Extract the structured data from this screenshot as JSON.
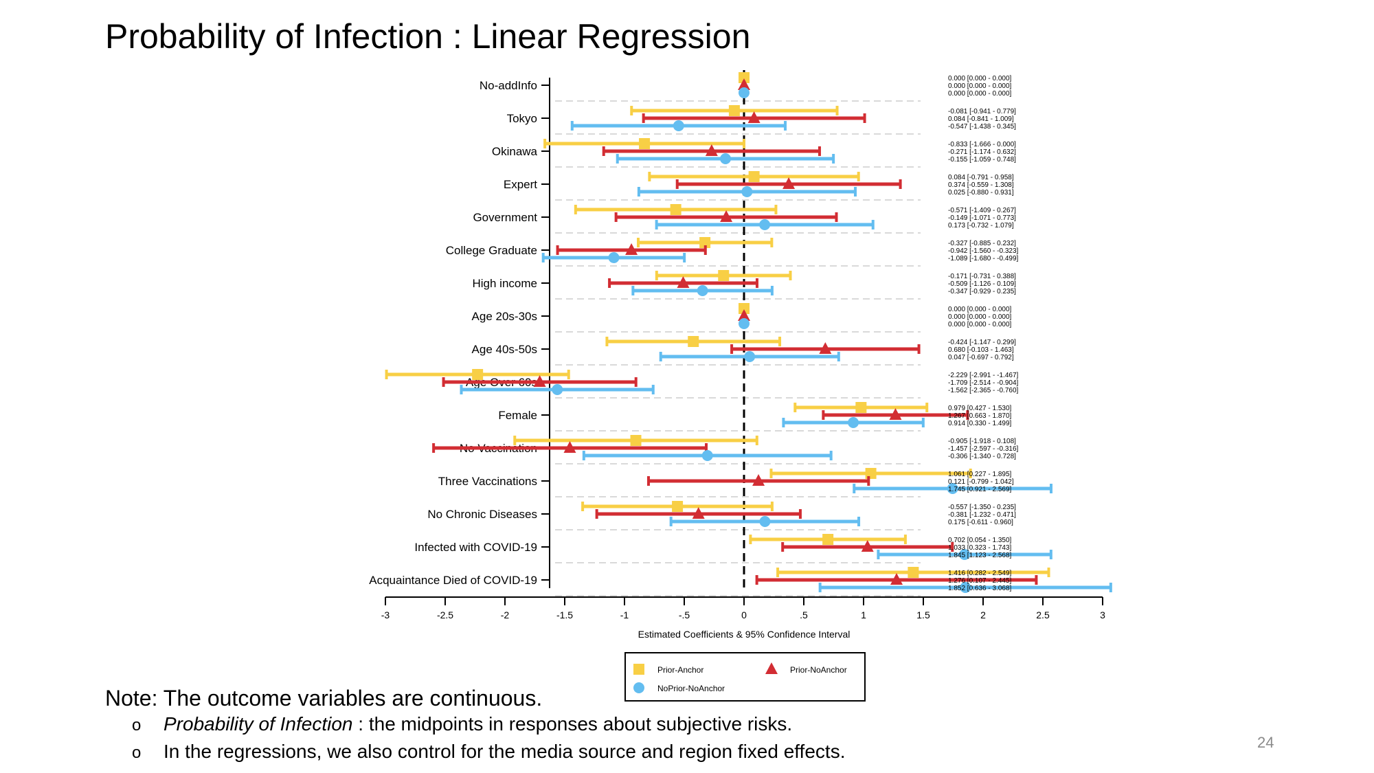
{
  "slide": {
    "title": "Probability of Infection : Linear Regression",
    "note": "Note: The outcome variables are continuous.",
    "bullets": [
      {
        "marker": "o",
        "italic": "Probability of Infection",
        "text": " : the midpoints in responses about subjective risks."
      },
      {
        "marker": "o",
        "italic": "",
        "text": "In the regressions, we also control for the media source and region fixed effects."
      }
    ],
    "page_number": "24"
  },
  "chart_data": {
    "type": "coefficient-plot",
    "orientation": "horizontal",
    "xlabel": "Estimated Coefficients & 95% Confidence Interval",
    "xlim": [
      -3,
      3
    ],
    "xticks": [
      -3,
      -2.5,
      -2,
      -1.5,
      -1,
      -0.5,
      0,
      0.5,
      1,
      1.5,
      2,
      2.5,
      3
    ],
    "xtick_labels": [
      "-3",
      "-2.5",
      "-2",
      "-1.5",
      "-1",
      "-.5",
      "0",
      ".5",
      "1",
      "1.5",
      "2",
      "2.5",
      "3"
    ],
    "reference_line": 0,
    "grid": "dashed horizontal separators",
    "legend_position": "bottom",
    "categories": [
      "No-addInfo",
      "Tokyo",
      "Okinawa",
      "Expert",
      "Government",
      "College Graduate",
      "High income",
      "Age 20s-30s",
      "Age 40s-50s",
      "Age Over 60s",
      "Female",
      "No Vaccination",
      "Three Vaccinations",
      "No Chronic Diseases",
      "Infected with COVID-19",
      "Acquaintance Died of COVID-19"
    ],
    "series": [
      {
        "name": "Prior-Anchor",
        "color": "#F8CF45",
        "marker": "square",
        "estimates": [
          0.0,
          -0.081,
          -0.833,
          0.084,
          -0.571,
          -0.327,
          -0.171,
          0.0,
          -0.424,
          -2.229,
          0.979,
          -0.905,
          1.061,
          -0.557,
          0.702,
          1.416
        ],
        "lower": [
          0.0,
          -0.941,
          -1.666,
          -0.791,
          -1.409,
          -0.885,
          -0.731,
          0.0,
          -1.147,
          -2.991,
          0.427,
          -1.918,
          0.227,
          -1.35,
          0.054,
          0.282
        ],
        "upper": [
          0.0,
          0.779,
          0.0,
          0.958,
          0.267,
          0.232,
          0.388,
          0.0,
          0.299,
          -1.467,
          1.53,
          0.108,
          1.895,
          0.235,
          1.35,
          2.549
        ],
        "labels": [
          "0.000 [0.000 - 0.000]",
          "-0.081 [-0.941 - 0.779]",
          "-0.833 [-1.666 - 0.000]",
          "0.084 [-0.791 - 0.958]",
          "-0.571 [-1.409 - 0.267]",
          "-0.327 [-0.885 - 0.232]",
          "-0.171 [-0.731 - 0.388]",
          "0.000 [0.000 - 0.000]",
          "-0.424 [-1.147 - 0.299]",
          "-2.229 [-2.991 - -1.467]",
          "0.979 [0.427 - 1.530]",
          "-0.905 [-1.918 - 0.108]",
          "1.061 [0.227 - 1.895]",
          "-0.557 [-1.350 - 0.235]",
          "0.702 [0.054 - 1.350]",
          "1.416 [0.282 - 2.549]"
        ]
      },
      {
        "name": "Prior-NoAnchor",
        "color": "#D22D33",
        "marker": "triangle",
        "estimates": [
          0.0,
          0.084,
          -0.271,
          0.374,
          -0.149,
          -0.942,
          -0.509,
          0.0,
          0.68,
          -1.709,
          1.267,
          -1.457,
          0.121,
          -0.381,
          1.033,
          1.276
        ],
        "lower": [
          0.0,
          -0.841,
          -1.174,
          -0.559,
          -1.071,
          -1.56,
          -1.126,
          0.0,
          -0.103,
          -2.514,
          0.663,
          -2.597,
          -0.799,
          -1.232,
          0.323,
          0.107
        ],
        "upper": [
          0.0,
          1.009,
          0.632,
          1.308,
          0.773,
          -0.323,
          0.109,
          0.0,
          1.463,
          -0.904,
          1.87,
          -0.316,
          1.042,
          0.471,
          1.743,
          2.445
        ],
        "labels": [
          "0.000 [0.000 - 0.000]",
          "0.084 [-0.841 - 1.009]",
          "-0.271 [-1.174 - 0.632]",
          "0.374 [-0.559 - 1.308]",
          "-0.149 [-1.071 - 0.773]",
          "-0.942 [-1.560 - -0.323]",
          "-0.509 [-1.126 - 0.109]",
          "0.000 [0.000 - 0.000]",
          "0.680 [-0.103 - 1.463]",
          "-1.709 [-2.514 - -0.904]",
          "1.267 [0.663 - 1.870]",
          "-1.457 [-2.597 - -0.316]",
          "0.121 [-0.799 - 1.042]",
          "-0.381 [-1.232 - 0.471]",
          "1.033 [0.323 - 1.743]",
          "1.276 [0.107 - 2.445]"
        ]
      },
      {
        "name": "NoPrior-NoAnchor",
        "color": "#63BDF0",
        "marker": "circle",
        "estimates": [
          0.0,
          -0.547,
          -0.155,
          0.025,
          0.173,
          -1.089,
          -0.347,
          0.0,
          0.047,
          -1.562,
          0.914,
          -0.306,
          1.745,
          0.175,
          1.845,
          1.852
        ],
        "lower": [
          0.0,
          -1.438,
          -1.059,
          -0.88,
          -0.732,
          -1.68,
          -0.929,
          0.0,
          -0.697,
          -2.365,
          0.33,
          -1.34,
          0.921,
          -0.611,
          1.123,
          0.636
        ],
        "upper": [
          0.0,
          0.345,
          0.748,
          0.931,
          1.079,
          -0.499,
          0.235,
          0.0,
          0.792,
          -0.76,
          1.499,
          0.728,
          2.569,
          0.96,
          2.568,
          3.068
        ],
        "labels": [
          "0.000 [0.000 - 0.000]",
          "-0.547 [-1.438 - 0.345]",
          "-0.155 [-1.059 - 0.748]",
          "0.025 [-0.880 - 0.931]",
          "0.173 [-0.732 - 1.079]",
          "-1.089 [-1.680 - -0.499]",
          "-0.347 [-0.929 - 0.235]",
          "0.000 [0.000 - 0.000]",
          "0.047 [-0.697 - 0.792]",
          "-1.562 [-2.365 - -0.760]",
          "0.914 [0.330 - 1.499]",
          "-0.306 [-1.340 - 0.728]",
          "1.745 [0.921 - 2.569]",
          "0.175 [-0.611 - 0.960]",
          "1.845 [1.123 - 2.568]",
          "1.852 [0.636 - 3.068]"
        ]
      }
    ]
  }
}
